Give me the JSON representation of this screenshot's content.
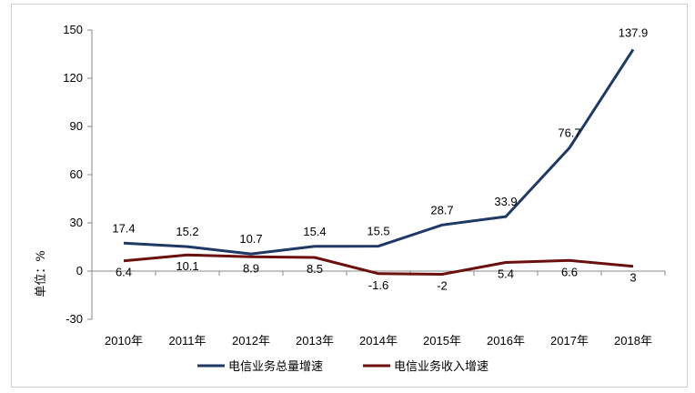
{
  "chart_data": {
    "type": "line",
    "categories": [
      "2010年",
      "2011年",
      "2012年",
      "2013年",
      "2014年",
      "2015年",
      "2016年",
      "2017年",
      "2018年"
    ],
    "series": [
      {
        "name": "电信业务总量增速",
        "color": "#1f3864",
        "values": [
          17.4,
          15.2,
          10.7,
          15.4,
          15.5,
          28.7,
          33.9,
          76.7,
          137.9
        ],
        "labels": [
          "17.4",
          "15.2",
          "10.7",
          "15.4",
          "15.5",
          "28.7",
          "33.9",
          "76.7",
          "137.9"
        ]
      },
      {
        "name": "电信业务收入增速",
        "color": "#6b0f0f",
        "values": [
          6.4,
          10.1,
          8.9,
          8.5,
          -1.6,
          -2,
          5.4,
          6.6,
          3
        ],
        "labels": [
          "6.4",
          "10.1",
          "8.9",
          "8.5",
          "-1.6",
          "-2",
          "5.4",
          "6.6",
          "3"
        ]
      }
    ],
    "yticks": [
      150,
      120,
      90,
      60,
      30,
      0,
      -30
    ],
    "ylim": [
      -30,
      150
    ],
    "ylabel": "单位：%",
    "xlabel": "",
    "title": "",
    "grid": false,
    "legend_position": "bottom"
  }
}
